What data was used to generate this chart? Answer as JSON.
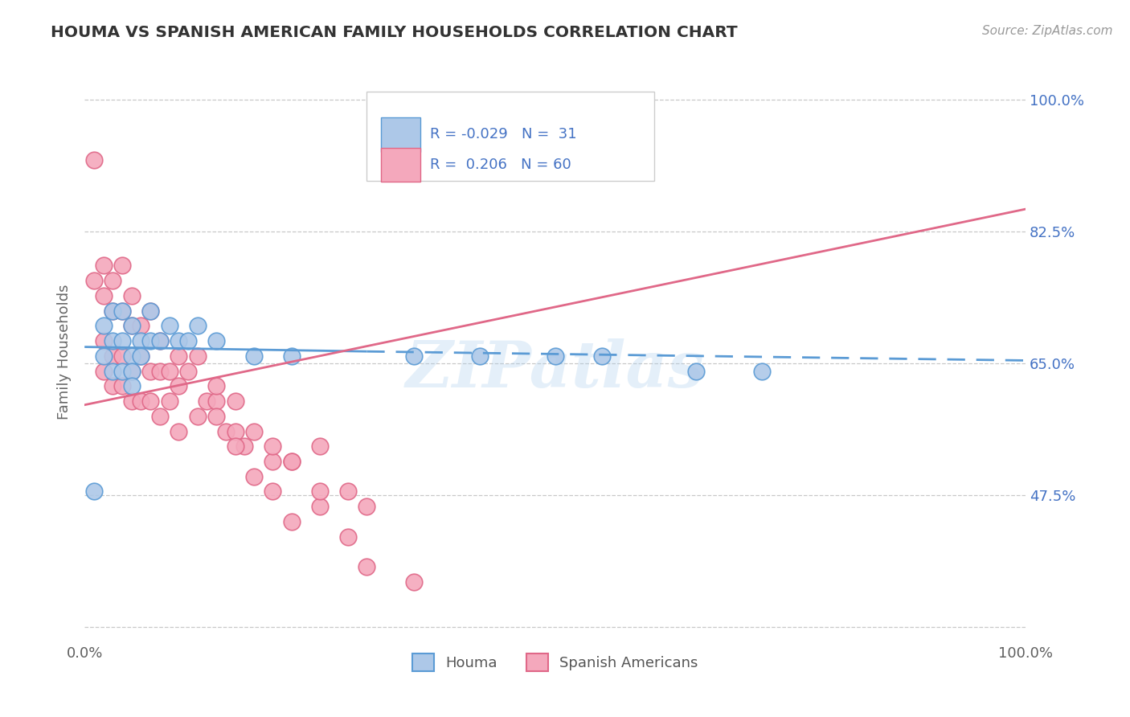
{
  "title": "HOUMA VS SPANISH AMERICAN FAMILY HOUSEHOLDS CORRELATION CHART",
  "source_text": "Source: ZipAtlas.com",
  "ylabel": "Family Households",
  "xlim": [
    0,
    1
  ],
  "ylim": [
    0.28,
    1.05
  ],
  "ytick_vals": [
    0.3,
    0.475,
    0.65,
    0.825,
    1.0
  ],
  "right_tick_labels": [
    "",
    "47.5%",
    "65.0%",
    "82.5%",
    "100.0%"
  ],
  "watermark": "ZIPatlas",
  "houma_color": "#adc8e8",
  "spanish_color": "#f4a8bc",
  "houma_edge": "#5b9bd5",
  "spanish_edge": "#e06888",
  "trend_houma_color": "#5b9bd5",
  "trend_spanish_color": "#e06888",
  "background_color": "#ffffff",
  "title_color": "#333333",
  "axis_label_color": "#666666",
  "right_tick_color": "#4472c4",
  "grid_color": "#c8c8c8",
  "houma_x": [
    0.01,
    0.02,
    0.02,
    0.03,
    0.03,
    0.03,
    0.04,
    0.04,
    0.04,
    0.05,
    0.05,
    0.05,
    0.05,
    0.06,
    0.06,
    0.07,
    0.07,
    0.08,
    0.09,
    0.1,
    0.11,
    0.12,
    0.14,
    0.18,
    0.22,
    0.35,
    0.42,
    0.5,
    0.55,
    0.65,
    0.72
  ],
  "houma_y": [
    0.48,
    0.7,
    0.66,
    0.72,
    0.68,
    0.64,
    0.72,
    0.68,
    0.64,
    0.7,
    0.66,
    0.64,
    0.62,
    0.68,
    0.66,
    0.72,
    0.68,
    0.68,
    0.7,
    0.68,
    0.68,
    0.7,
    0.68,
    0.66,
    0.66,
    0.66,
    0.66,
    0.66,
    0.66,
    0.64,
    0.64
  ],
  "spanish_x": [
    0.01,
    0.01,
    0.02,
    0.02,
    0.02,
    0.02,
    0.03,
    0.03,
    0.03,
    0.03,
    0.04,
    0.04,
    0.04,
    0.04,
    0.05,
    0.05,
    0.05,
    0.05,
    0.06,
    0.06,
    0.06,
    0.07,
    0.07,
    0.07,
    0.08,
    0.08,
    0.08,
    0.09,
    0.09,
    0.1,
    0.1,
    0.1,
    0.11,
    0.12,
    0.12,
    0.13,
    0.14,
    0.15,
    0.16,
    0.17,
    0.18,
    0.2,
    0.22,
    0.25,
    0.28,
    0.3,
    0.14,
    0.16,
    0.18,
    0.2,
    0.22,
    0.25,
    0.28,
    0.3,
    0.35,
    0.14,
    0.16,
    0.2,
    0.22,
    0.25
  ],
  "spanish_y": [
    0.92,
    0.76,
    0.78,
    0.74,
    0.68,
    0.64,
    0.76,
    0.72,
    0.66,
    0.62,
    0.78,
    0.72,
    0.66,
    0.62,
    0.74,
    0.7,
    0.64,
    0.6,
    0.7,
    0.66,
    0.6,
    0.72,
    0.64,
    0.6,
    0.68,
    0.64,
    0.58,
    0.64,
    0.6,
    0.66,
    0.62,
    0.56,
    0.64,
    0.66,
    0.58,
    0.6,
    0.6,
    0.56,
    0.56,
    0.54,
    0.56,
    0.52,
    0.52,
    0.54,
    0.48,
    0.46,
    0.58,
    0.54,
    0.5,
    0.48,
    0.44,
    0.46,
    0.42,
    0.38,
    0.36,
    0.62,
    0.6,
    0.54,
    0.52,
    0.48
  ],
  "trend_houma_x0": 0.0,
  "trend_houma_x1": 0.3,
  "trend_houma_x1_dash": 1.0,
  "trend_spanish_x0": 0.0,
  "trend_spanish_x1": 1.0,
  "trend_houma_y0": 0.672,
  "trend_houma_y1": 0.666,
  "trend_houma_y1_dash": 0.654,
  "trend_spanish_y0": 0.595,
  "trend_spanish_y1": 0.855
}
